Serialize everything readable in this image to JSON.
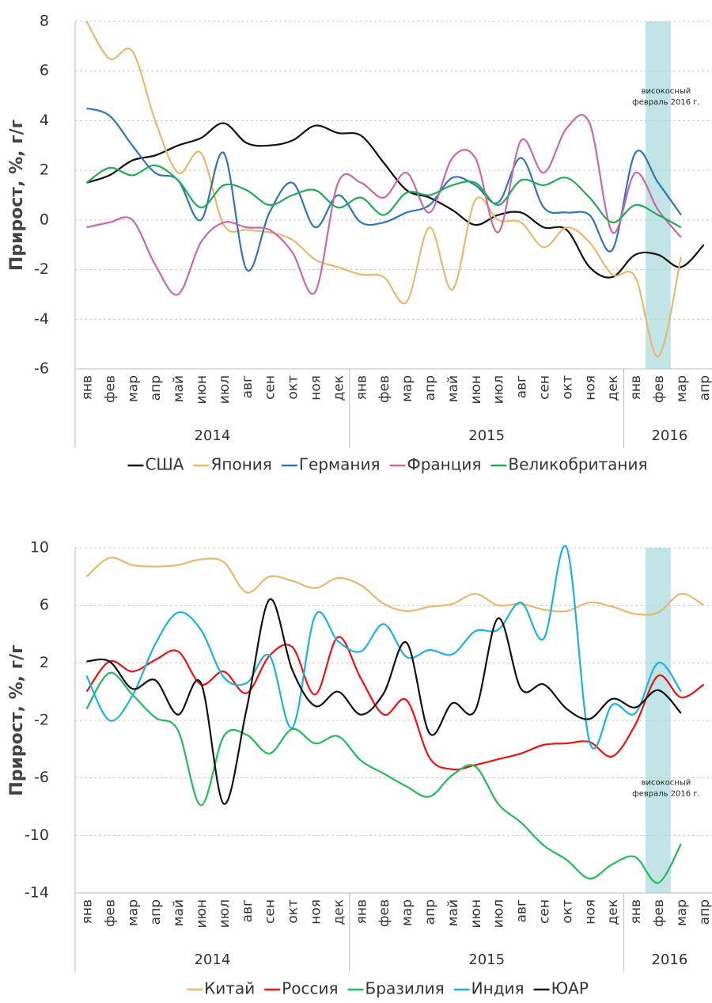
{
  "chart_data": [
    {
      "type": "line",
      "y_label": "Прирост, %, г/г",
      "categories": [
        "янв",
        "фев",
        "мар",
        "апр",
        "май",
        "июн",
        "июл",
        "авг",
        "сен",
        "окт",
        "ноя",
        "дек",
        "янв",
        "фев",
        "мар",
        "апр",
        "май",
        "июн",
        "июл",
        "авг",
        "сен",
        "окт",
        "ноя",
        "дек",
        "янв",
        "фев",
        "мар",
        "апр"
      ],
      "years": [
        "2014",
        "2015",
        "2016"
      ],
      "ylim": [
        -6,
        8
      ],
      "yticks": [
        -6,
        -4,
        -2,
        0,
        2,
        4,
        6,
        8
      ],
      "grid": true,
      "annotation": {
        "text": [
          "високосный",
          "февраль 2016 г."
        ],
        "category": "фев",
        "year": "2016",
        "color": "#b2dfe0"
      },
      "series": [
        {
          "name": "США",
          "color": "#111111",
          "values": [
            1.5,
            1.8,
            2.4,
            2.6,
            3.0,
            3.3,
            3.9,
            3.1,
            3.0,
            3.2,
            3.8,
            3.5,
            3.4,
            2.3,
            1.2,
            0.9,
            0.4,
            -0.2,
            0.2,
            0.3,
            -0.3,
            -0.4,
            -1.9,
            -2.3,
            -1.4,
            -1.4,
            -1.9,
            -1.0
          ]
        },
        {
          "name": "Япония",
          "color": "#e8b86d",
          "values": [
            8.0,
            6.5,
            6.8,
            4.0,
            1.9,
            2.7,
            -0.2,
            -0.4,
            -0.5,
            -0.8,
            -1.6,
            -1.9,
            -2.2,
            -2.3,
            -3.3,
            -0.3,
            -2.8,
            0.8,
            0.0,
            -0.1,
            -1.1,
            -0.3,
            -0.9,
            -2.2,
            -2.3,
            -5.5,
            -1.5,
            null
          ]
        },
        {
          "name": "Германия",
          "color": "#2e75b6",
          "values": [
            4.5,
            4.2,
            3.0,
            1.9,
            1.6,
            0.0,
            2.7,
            -2.0,
            0.3,
            1.5,
            -0.3,
            1.0,
            -0.1,
            -0.1,
            0.3,
            0.6,
            1.7,
            1.4,
            0.7,
            2.5,
            0.5,
            0.3,
            0.2,
            -1.2,
            2.7,
            1.5,
            0.2,
            null
          ]
        },
        {
          "name": "Франция",
          "color": "#cc66aa",
          "values": [
            -0.3,
            -0.1,
            0.0,
            -1.8,
            -3.0,
            -0.9,
            -0.1,
            -0.3,
            -0.4,
            -1.3,
            -2.9,
            1.5,
            1.5,
            0.9,
            1.9,
            0.3,
            2.5,
            2.5,
            -0.5,
            3.2,
            1.9,
            3.7,
            3.9,
            -0.5,
            1.9,
            0.4,
            -0.7,
            null
          ]
        },
        {
          "name": "Великобритания",
          "color": "#22aa55",
          "values": [
            1.5,
            2.1,
            1.8,
            2.2,
            1.6,
            0.5,
            1.4,
            1.2,
            0.6,
            1.0,
            1.2,
            0.5,
            0.9,
            0.2,
            1.1,
            1.0,
            1.4,
            1.5,
            0.6,
            1.6,
            1.4,
            1.7,
            0.9,
            -0.1,
            0.6,
            0.2,
            -0.3,
            null
          ]
        }
      ]
    },
    {
      "type": "line",
      "y_label": "Прирост, %, г/г",
      "categories": [
        "янв",
        "фев",
        "мар",
        "апр",
        "май",
        "июн",
        "июл",
        "авг",
        "сен",
        "окт",
        "ноя",
        "дек",
        "янв",
        "фев",
        "мар",
        "апр",
        "май",
        "июн",
        "июл",
        "авг",
        "сен",
        "окт",
        "ноя",
        "дек",
        "янв",
        "фев",
        "мар",
        "апр"
      ],
      "years": [
        "2014",
        "2015",
        "2016"
      ],
      "ylim": [
        -14,
        10
      ],
      "yticks": [
        -14,
        -10,
        -6,
        -2,
        2,
        6,
        10
      ],
      "grid": true,
      "annotation": {
        "text": [
          "високосный",
          "февраль 2016 г."
        ],
        "category": "фев",
        "year": "2016",
        "color": "#b2dfe0"
      },
      "series": [
        {
          "name": "Китай",
          "color": "#e8b86d",
          "values": [
            8.0,
            9.3,
            8.8,
            8.7,
            8.8,
            9.2,
            9.0,
            6.9,
            8.0,
            7.7,
            7.2,
            7.9,
            7.4,
            6.1,
            5.6,
            5.9,
            6.1,
            6.8,
            6.0,
            6.1,
            5.7,
            5.6,
            6.2,
            5.9,
            5.4,
            5.5,
            6.8,
            6.0
          ]
        },
        {
          "name": "Россия",
          "color": "#ee1111",
          "values": [
            0.0,
            2.1,
            1.4,
            2.2,
            2.8,
            0.5,
            1.4,
            -0.1,
            2.5,
            3.1,
            -0.2,
            3.8,
            0.9,
            -1.6,
            -0.6,
            -4.6,
            -5.4,
            -5.1,
            -4.7,
            -4.3,
            -3.7,
            -3.6,
            -3.5,
            -4.5,
            -2.3,
            1.1,
            -0.4,
            0.5
          ]
        },
        {
          "name": "Бразилия",
          "color": "#22bb55",
          "values": [
            -1.2,
            1.3,
            -0.2,
            -1.8,
            -2.7,
            -7.9,
            -3.1,
            -3.0,
            -4.3,
            -2.6,
            -3.6,
            -3.1,
            -4.8,
            -5.7,
            -6.6,
            -7.3,
            -5.8,
            -5.2,
            -7.8,
            -9.1,
            -10.7,
            -11.7,
            -13.0,
            -12.0,
            -11.5,
            -13.3,
            -10.6,
            null
          ]
        },
        {
          "name": "Индия",
          "color": "#1ab0e8",
          "values": [
            1.1,
            -2.0,
            -0.3,
            3.3,
            5.5,
            4.3,
            1.0,
            0.6,
            2.5,
            -2.5,
            5.3,
            3.5,
            2.8,
            4.7,
            2.4,
            2.9,
            2.6,
            4.2,
            4.3,
            6.2,
            3.7,
            10.0,
            -3.5,
            -0.9,
            -1.5,
            2.0,
            0.0,
            null
          ]
        },
        {
          "name": "ЮАР",
          "color": "#111111",
          "values": [
            2.1,
            2.1,
            0.2,
            0.8,
            -1.6,
            0.6,
            -7.8,
            -1.2,
            6.4,
            1.5,
            -1.0,
            0.0,
            -1.6,
            -0.1,
            3.4,
            -2.9,
            -0.8,
            -1.3,
            5.1,
            0.2,
            0.5,
            -1.2,
            -1.9,
            -0.5,
            -1.1,
            0.1,
            -1.5,
            null
          ]
        }
      ]
    }
  ]
}
